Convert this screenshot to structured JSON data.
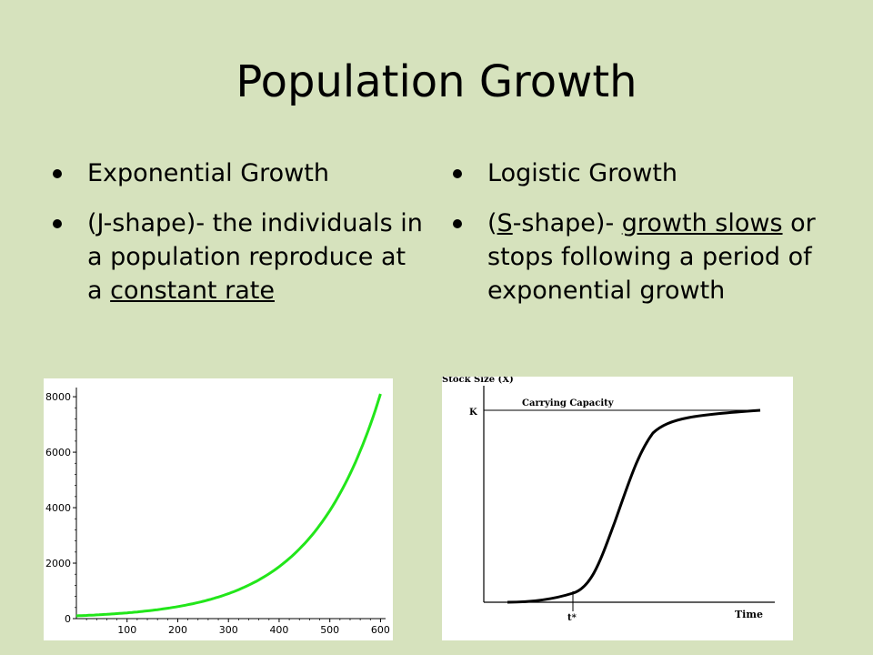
{
  "slide": {
    "title": "Population Growth",
    "left": {
      "bullet1": "Exponential Growth",
      "bullet2_parts": [
        "(",
        "J",
        "-shape)- the individuals in a population reproduce at a ",
        "constant rate"
      ]
    },
    "right": {
      "bullet1": "Logistic Growth",
      "bullet2_parts": [
        "(",
        "S",
        "-shape)- ",
        "growth slows",
        " or stops following a period of exponential growth"
      ]
    }
  },
  "chart_data": [
    {
      "type": "line",
      "x": [
        0,
        100,
        200,
        300,
        400,
        500,
        600
      ],
      "series": [
        {
          "values": [
            100,
            208,
            433,
            900,
            1872,
            3895,
            8100
          ]
        }
      ],
      "xlim": [
        0,
        610
      ],
      "ylim": [
        0,
        8200
      ],
      "xticks": [
        "100",
        "200",
        "300",
        "400",
        "500",
        "600"
      ],
      "yticks": [
        "0",
        "2000",
        "4000",
        "6000",
        "8000"
      ],
      "line_color": "#22e61a"
    },
    {
      "type": "line",
      "ylabel": "Stock Size (X)",
      "xlabel": "Time",
      "annotations": {
        "carrying_capacity": "Carrying Capacity",
        "k_label": "K",
        "t_label": "t*"
      },
      "line_color": "#000000"
    }
  ]
}
